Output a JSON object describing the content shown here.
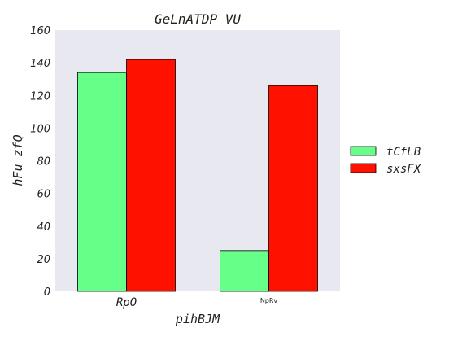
{
  "chart_data": {
    "type": "bar",
    "title": "GeLnATDP  VU",
    "xlabel": "pihBJM",
    "ylabel": "hFu zfQ",
    "categories": [
      "RpO",
      "NpRv"
    ],
    "series": [
      {
        "name": "tCfLB",
        "values": [
          134,
          25
        ],
        "color": "#66ff88"
      },
      {
        "name": "sxsFX",
        "values": [
          142,
          126
        ],
        "color": "#ff1100"
      }
    ],
    "ylim": [
      0,
      160
    ],
    "yticks": [
      0,
      20,
      40,
      60,
      80,
      100,
      120,
      140,
      160
    ],
    "grid": false,
    "legend_position": "right",
    "plot_background": "#e8e8f0"
  }
}
